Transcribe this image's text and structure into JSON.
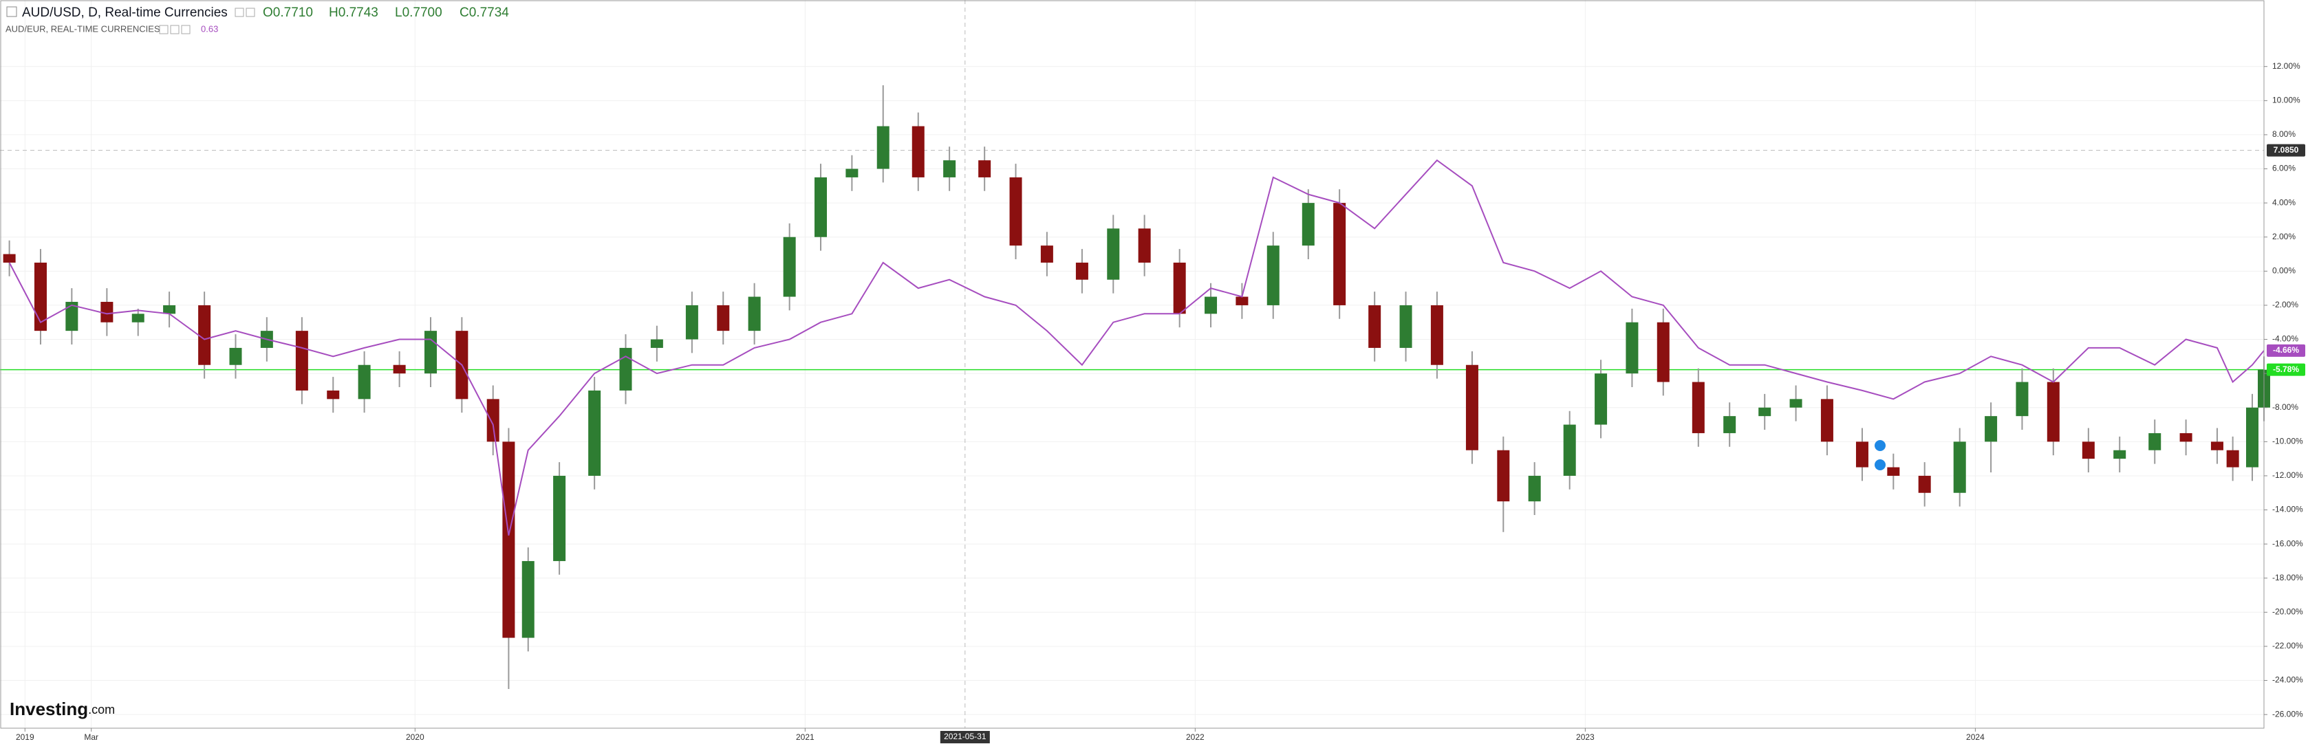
{
  "chart_data": {
    "type": "candlestick",
    "x": [
      2018.96,
      2019.04,
      2019.12,
      2019.21,
      2019.29,
      2019.37,
      2019.46,
      2019.54,
      2019.62,
      2019.71,
      2019.79,
      2019.87,
      2019.96,
      2020.04,
      2020.12,
      2020.2,
      2020.24,
      2020.29,
      2020.37,
      2020.46,
      2020.54,
      2020.62,
      2020.71,
      2020.79,
      2020.87,
      2020.96,
      2021.04,
      2021.12,
      2021.2,
      2021.29,
      2021.37,
      2021.46,
      2021.54,
      2021.62,
      2021.71,
      2021.79,
      2021.87,
      2021.96,
      2022.04,
      2022.12,
      2022.2,
      2022.29,
      2022.37,
      2022.46,
      2022.54,
      2022.62,
      2022.71,
      2022.79,
      2022.87,
      2022.96,
      2023.04,
      2023.12,
      2023.2,
      2023.29,
      2023.37,
      2023.46,
      2023.54,
      2023.62,
      2023.71,
      2023.79,
      2023.87,
      2023.96,
      2024.04,
      2024.12,
      2024.2,
      2024.29,
      2024.37,
      2024.46,
      2024.54,
      2024.62,
      2024.66,
      2024.71,
      2024.74
    ],
    "series": [
      {
        "name": "AUD/USD, D, Real-time Currencies",
        "type": "candlestick",
        "up_color": "#2e7d32",
        "down_color": "#8b1010",
        "ohlc_labels": [
          "O0.7710",
          "H0.7743",
          "L0.7700",
          "C0.7734"
        ],
        "last_label": "-5.78%",
        "last_color": "#22dd22",
        "open": [
          1.0,
          0.5,
          -3.5,
          -1.8,
          -3.0,
          -2.5,
          -2.0,
          -5.5,
          -4.5,
          -3.5,
          -7.0,
          -7.5,
          -5.5,
          -6.0,
          -3.5,
          -7.5,
          -10.0,
          -21.5,
          -17,
          -12,
          -7,
          -4.5,
          -4.0,
          -2.0,
          -3.5,
          -1.5,
          2.0,
          5.5,
          6.0,
          8.5,
          5.5,
          6.5,
          5.5,
          1.5,
          0.5,
          -0.5,
          2.5,
          0.5,
          -2.5,
          -1.5,
          -2.0,
          1.5,
          4.0,
          -2.0,
          -4.5,
          -2.0,
          -5.5,
          -10.5,
          -13.5,
          -12.0,
          -9.0,
          -6.0,
          -3.0,
          -6.5,
          -9.5,
          -8.5,
          -8.0,
          -7.5,
          -10.0,
          -11.5,
          -12.0,
          -13.0,
          -10.0,
          -8.5,
          -6.5,
          -10,
          -11.0,
          -10.5,
          -9.5,
          -10.0,
          -10.5,
          -11.5,
          -8.0
        ],
        "high": [
          1.8,
          1.3,
          -1.0,
          -1.0,
          -2.2,
          -1.2,
          -1.2,
          -3.7,
          -2.7,
          -2.7,
          -6.2,
          -4.7,
          -4.7,
          -2.7,
          -2.7,
          -6.7,
          -9.2,
          -16.2,
          -11.2,
          -6.2,
          -3.7,
          -3.2,
          -1.2,
          -1.2,
          -0.7,
          2.8,
          6.3,
          6.8,
          10.9,
          9.3,
          7.3,
          7.3,
          6.3,
          2.3,
          1.3,
          3.3,
          3.3,
          1.3,
          -0.7,
          -0.7,
          2.3,
          4.8,
          4.8,
          -1.2,
          -1.2,
          -1.2,
          -4.7,
          -9.7,
          -11.2,
          -8.2,
          -5.2,
          -2.2,
          -2.2,
          -5.7,
          -7.7,
          -7.2,
          -6.7,
          -6.7,
          -9.2,
          -10.7,
          -11.2,
          -9.2,
          -7.7,
          -5.7,
          -5.7,
          -9.2,
          -9.7,
          -8.7,
          -8.7,
          -9.2,
          -9.7,
          -7.2,
          -5.0
        ],
        "low": [
          -0.3,
          -4.3,
          -4.3,
          -3.8,
          -3.8,
          -3.3,
          -6.3,
          -6.3,
          -5.3,
          -7.8,
          -8.3,
          -8.3,
          -6.8,
          -6.8,
          -8.3,
          -10.8,
          -24.5,
          -22.3,
          -17.8,
          -12.8,
          -7.8,
          -5.3,
          -4.8,
          -4.3,
          -4.3,
          -2.3,
          1.2,
          4.7,
          5.2,
          4.7,
          4.7,
          4.7,
          0.7,
          -0.3,
          -1.3,
          -1.3,
          -0.3,
          -3.3,
          -3.3,
          -2.8,
          -2.8,
          0.7,
          -2.8,
          -5.3,
          -5.3,
          -6.3,
          -11.3,
          -15.3,
          -14.3,
          -12.8,
          -9.8,
          -6.8,
          -7.3,
          -10.3,
          -10.3,
          -9.3,
          -8.8,
          -10.8,
          -12.3,
          -12.8,
          -13.8,
          -13.8,
          -11.8,
          -9.3,
          -10.8,
          -11.8,
          -11.8,
          -11.3,
          -10.8,
          -11.3,
          -12.3,
          -12.3,
          -8.8
        ],
        "close": [
          0.5,
          -3.5,
          -1.8,
          -3.0,
          -2.5,
          -2.0,
          -5.5,
          -4.5,
          -3.5,
          -7.0,
          -7.5,
          -5.5,
          -6.0,
          -3.5,
          -7.5,
          -10.0,
          -21.5,
          -17,
          -12,
          -7,
          -4.5,
          -4.0,
          -2.0,
          -3.5,
          -1.5,
          2.0,
          5.5,
          6.0,
          8.5,
          5.5,
          6.5,
          5.5,
          1.5,
          0.5,
          -0.5,
          2.5,
          0.5,
          -2.5,
          -1.5,
          -2.0,
          1.5,
          4.0,
          -2.0,
          -4.5,
          -2.0,
          -5.5,
          -10.5,
          -13.5,
          -12.0,
          -9.0,
          -6.0,
          -3.0,
          -6.5,
          -9.5,
          -8.5,
          -8.0,
          -7.5,
          -10.0,
          -11.5,
          -12.0,
          -13.0,
          -10.0,
          -8.5,
          -6.5,
          -10,
          -11.0,
          -10.5,
          -9.5,
          -10.0,
          -10.5,
          -11.5,
          -8.0,
          -5.78
        ]
      },
      {
        "name": "AUD/EUR, REAL-TIME CURRENCIES",
        "type": "line",
        "color": "#a64dbf",
        "value_label": "0.63",
        "last_label": "-4.66%",
        "values": [
          0.5,
          -3.0,
          -2.0,
          -2.5,
          -2.3,
          -2.5,
          -4.0,
          -3.5,
          -4.0,
          -4.5,
          -5.0,
          -4.5,
          -4.0,
          -4.0,
          -5.5,
          -9.0,
          -15.5,
          -10.5,
          -8.5,
          -6.0,
          -5.0,
          -6.0,
          -5.5,
          -5.5,
          -4.5,
          -4.0,
          -3.0,
          -2.5,
          0.5,
          -1.0,
          -0.5,
          -1.5,
          -2.0,
          -3.5,
          -5.5,
          -3.0,
          -2.5,
          -2.5,
          -1.0,
          -1.5,
          5.5,
          4.5,
          4.0,
          2.5,
          4.5,
          6.5,
          5.0,
          0.5,
          0.0,
          -1.0,
          0.0,
          -1.5,
          -2.0,
          -4.5,
          -5.5,
          -5.5,
          -6.0,
          -6.5,
          -7.0,
          -7.5,
          -6.5,
          -6.0,
          -5.0,
          -5.5,
          -6.5,
          -4.5,
          -4.5,
          -5.5,
          -4.0,
          -4.5,
          -6.5,
          -5.5,
          -4.66
        ]
      }
    ],
    "xlim": [
      2018.936,
      2024.74
    ],
    "xticks": [
      {
        "value": 2019,
        "label": "2019"
      },
      {
        "value": 2019.17,
        "label": "Mar"
      },
      {
        "value": 2020,
        "label": "2020"
      },
      {
        "value": 2021,
        "label": "2021"
      },
      {
        "value": 2022,
        "label": "2022"
      },
      {
        "value": 2023,
        "label": "2023"
      },
      {
        "value": 2024,
        "label": "2024"
      }
    ],
    "ylim": [
      -26.8,
      15.9
    ],
    "yticks": [
      {
        "value": 12,
        "label": "12.00%"
      },
      {
        "value": 10,
        "label": "10.00%"
      },
      {
        "value": 8,
        "label": "8.00%"
      },
      {
        "value": 6,
        "label": "6.00%"
      },
      {
        "value": 4,
        "label": "4.00%"
      },
      {
        "value": 2,
        "label": "2.00%"
      },
      {
        "value": 0,
        "label": "0.00%"
      },
      {
        "value": -2,
        "label": "-2.00%"
      },
      {
        "value": -4,
        "label": "-4.00%"
      },
      {
        "value": -6,
        "label": "-6.00%"
      },
      {
        "value": -8,
        "label": "-8.00%"
      },
      {
        "value": -10,
        "label": "-10.00%"
      },
      {
        "value": -12,
        "label": "-12.00%"
      },
      {
        "value": -14,
        "label": "-14.00%"
      },
      {
        "value": -16,
        "label": "-16.00%"
      },
      {
        "value": -18,
        "label": "-18.00%"
      },
      {
        "value": -20,
        "label": "-20.00%"
      },
      {
        "value": -22,
        "label": "-22.00%"
      },
      {
        "value": -24,
        "label": "-24.00%"
      },
      {
        "value": -26,
        "label": "-26.00%"
      }
    ],
    "grid": true,
    "crosshair": {
      "x": 2021.41,
      "x_label": "2021-05-31",
      "y": {
        "value": 7.085,
        "label": "7.0850"
      }
    },
    "brand": "Investing",
    "brand_suffix": ".com"
  }
}
